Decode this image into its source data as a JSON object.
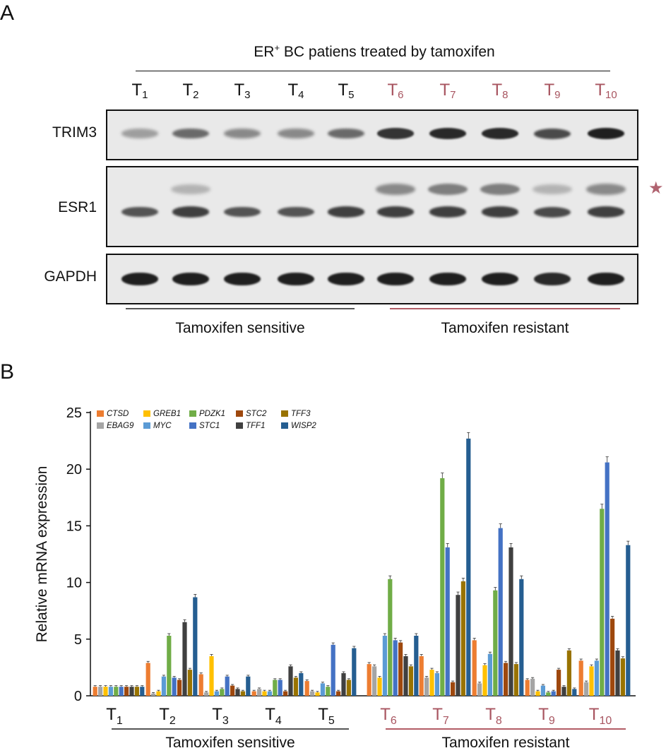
{
  "panel_a": {
    "letter": "A",
    "header": {
      "main": "ER",
      "sup": "+",
      "rest": " BC patiens treated by tamoxifen"
    },
    "lanes": [
      {
        "base": "T",
        "sub": "1",
        "group": "sensitive"
      },
      {
        "base": "T",
        "sub": "2",
        "group": "sensitive"
      },
      {
        "base": "T",
        "sub": "3",
        "group": "sensitive"
      },
      {
        "base": "T",
        "sub": "4",
        "group": "sensitive"
      },
      {
        "base": "T",
        "sub": "5",
        "group": "sensitive"
      },
      {
        "base": "T",
        "sub": "6",
        "group": "resistant"
      },
      {
        "base": "T",
        "sub": "7",
        "group": "resistant"
      },
      {
        "base": "T",
        "sub": "8",
        "group": "resistant"
      },
      {
        "base": "T",
        "sub": "9",
        "group": "resistant"
      },
      {
        "base": "T",
        "sub": "10",
        "group": "resistant"
      }
    ],
    "blots": [
      {
        "label": "TRIM3",
        "main_intensity": [
          0.35,
          0.6,
          0.45,
          0.45,
          0.6,
          0.85,
          0.9,
          0.9,
          0.75,
          0.95
        ]
      },
      {
        "label": "ESR1",
        "main_intensity": [
          0.7,
          0.8,
          0.7,
          0.7,
          0.8,
          0.8,
          0.8,
          0.8,
          0.75,
          0.8
        ],
        "upper_intensity": [
          0,
          0.25,
          0,
          0,
          0,
          0.45,
          0.5,
          0.5,
          0.25,
          0.45
        ]
      },
      {
        "label": "GAPDH",
        "main_intensity": [
          0.95,
          0.95,
          0.95,
          0.95,
          0.95,
          0.95,
          0.95,
          0.95,
          0.9,
          0.95
        ]
      }
    ],
    "star_symbol": "★",
    "group_sensitive": "Tamoxifen sensitive",
    "group_resistant": "Tamoxifen resistant"
  },
  "panel_b": {
    "letter": "B",
    "group_sensitive": "Tamoxifen sensitive",
    "group_resistant": "Tamoxifen resistant"
  },
  "colors": {
    "sensitive_text": "#111111",
    "resistant_text": "#a85560",
    "sensitive_line": "#555555",
    "resistant_line": "#b25c66",
    "star": "#b06370"
  },
  "chart_data": {
    "type": "bar",
    "ylabel": "Relative mRNA expression",
    "xlabel": "",
    "ylim": [
      0,
      25
    ],
    "yticks": [
      0,
      5,
      10,
      15,
      20,
      25
    ],
    "legend_position": "top-left",
    "categories": [
      {
        "base": "T",
        "sub": "1"
      },
      {
        "base": "T",
        "sub": "2"
      },
      {
        "base": "T",
        "sub": "3"
      },
      {
        "base": "T",
        "sub": "4"
      },
      {
        "base": "T",
        "sub": "5"
      },
      {
        "base": "T",
        "sub": "6"
      },
      {
        "base": "T",
        "sub": "7"
      },
      {
        "base": "T",
        "sub": "8"
      },
      {
        "base": "T",
        "sub": "9"
      },
      {
        "base": "T",
        "sub": "10"
      }
    ],
    "series": [
      {
        "name": "CTSD",
        "color": "#ed7d31",
        "values": [
          0.8,
          2.9,
          1.9,
          0.4,
          1.3,
          2.8,
          3.5,
          4.9,
          1.4,
          3.1
        ]
      },
      {
        "name": "EBAG9",
        "color": "#a5a5a5",
        "values": [
          0.8,
          0.2,
          0.3,
          0.6,
          0.4,
          2.6,
          1.6,
          1.1,
          1.5,
          1.2
        ]
      },
      {
        "name": "GREB1",
        "color": "#ffc000",
        "values": [
          0.8,
          0.4,
          3.5,
          0.4,
          0.3,
          1.6,
          2.3,
          2.7,
          0.4,
          2.6
        ]
      },
      {
        "name": "MYC",
        "color": "#5b9bd5",
        "values": [
          0.8,
          1.7,
          0.4,
          0.4,
          1.1,
          5.3,
          2.0,
          3.7,
          0.9,
          3.1
        ]
      },
      {
        "name": "PDZK1",
        "color": "#70ad47",
        "values": [
          0.8,
          5.3,
          0.6,
          1.4,
          0.8,
          10.3,
          19.2,
          9.3,
          0.3,
          16.5
        ]
      },
      {
        "name": "STC1",
        "color": "#4472c4",
        "values": [
          0.8,
          1.6,
          1.7,
          1.4,
          4.5,
          4.9,
          13.1,
          14.8,
          0.4,
          20.6
        ]
      },
      {
        "name": "STC2",
        "color": "#9e480e",
        "values": [
          0.8,
          1.4,
          0.9,
          0.4,
          0.4,
          4.7,
          1.2,
          2.9,
          2.3,
          6.8
        ]
      },
      {
        "name": "TFF1",
        "color": "#404040",
        "values": [
          0.8,
          6.5,
          0.6,
          2.6,
          2.0,
          3.5,
          8.9,
          13.1,
          0.8,
          4.0
        ]
      },
      {
        "name": "TFF3",
        "color": "#997300",
        "values": [
          0.8,
          2.3,
          0.4,
          1.6,
          1.4,
          2.6,
          10.1,
          2.8,
          4.0,
          3.3
        ]
      },
      {
        "name": "WISP2",
        "color": "#255e91",
        "values": [
          0.8,
          8.7,
          1.7,
          2.0,
          4.2,
          5.3,
          22.7,
          10.3,
          0.6,
          13.3
        ]
      }
    ]
  }
}
